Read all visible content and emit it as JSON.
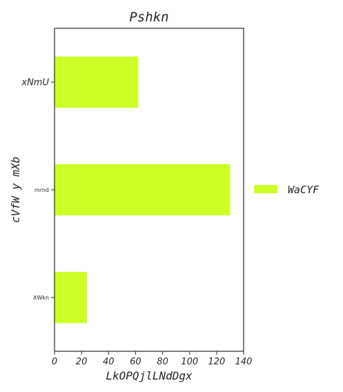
{
  "chart_data": {
    "type": "bar",
    "orientation": "horizontal",
    "title": "Pshkn",
    "xlabel": "LkOPQjlLNdDgx",
    "ylabel": "cVfW y mXb",
    "categories": [
      "xNmU",
      "mrnd",
      "XWkn"
    ],
    "series": [
      {
        "name": "WaCYF",
        "values": [
          62,
          130,
          24
        ],
        "color": "#ccff26"
      }
    ],
    "xlim": [
      0,
      140
    ],
    "xticks": [
      0,
      20,
      40,
      60,
      80,
      100,
      120,
      140
    ],
    "grid": false,
    "legend_position": "right"
  }
}
